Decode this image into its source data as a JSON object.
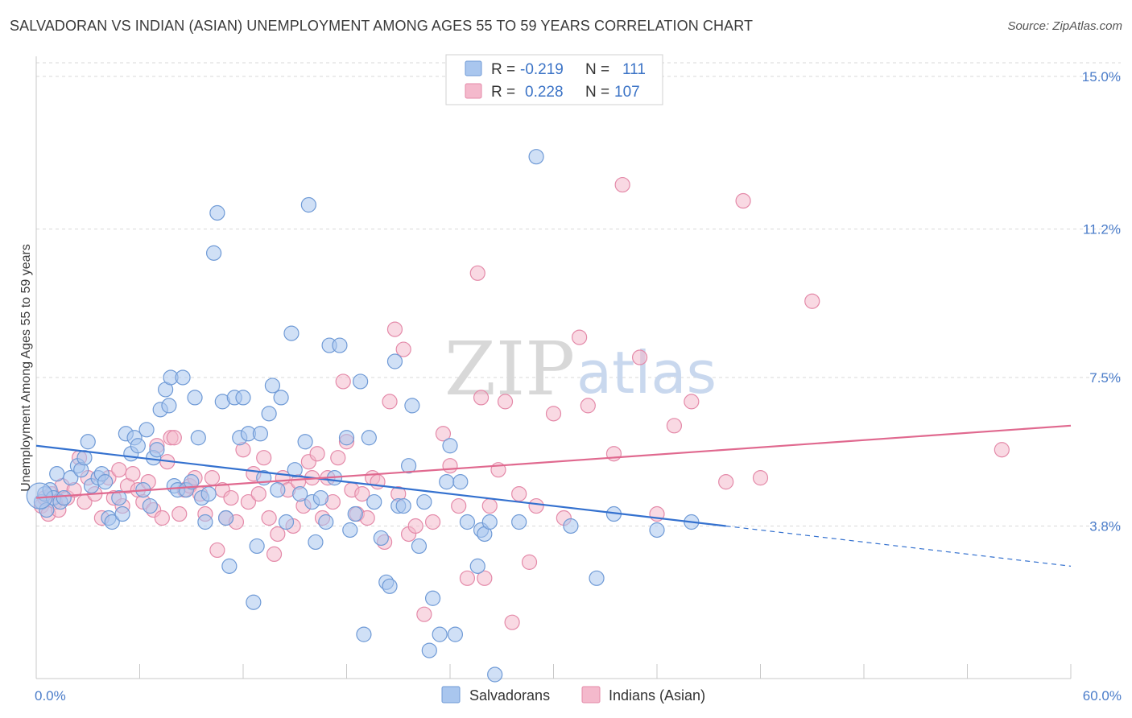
{
  "title": "SALVADORAN VS INDIAN (ASIAN) UNEMPLOYMENT AMONG AGES 55 TO 59 YEARS CORRELATION CHART",
  "source": "Source: ZipAtlas.com",
  "watermark": {
    "zip": "ZIP",
    "atlas": "atlas"
  },
  "legend": {
    "rows": [
      {
        "r_label": "R =",
        "r_value": "-0.219",
        "n_label": "N =",
        "n_value": "111"
      },
      {
        "r_label": "R =",
        "r_value": "0.228",
        "n_label": "N =",
        "n_value": "107"
      }
    ]
  },
  "bottom_legend": [
    "Salvadorans",
    "Indians (Asian)"
  ],
  "colors": {
    "blue_fill": "#a9c6ee",
    "blue_stroke": "#6f9ad6",
    "blue_line": "#3471cf",
    "pink_fill": "#f4b9cc",
    "pink_stroke": "#e48aa9",
    "pink_line": "#e0698f",
    "grid": "#d9d9d9",
    "tick_text": "#4a7cc9"
  },
  "chart_data": {
    "type": "scatter",
    "title": "SALVADORAN VS INDIAN (ASIAN) UNEMPLOYMENT AMONG AGES 55 TO 59 YEARS CORRELATION CHART",
    "xlabel": "",
    "ylabel": "Unemployment Among Ages 55 to 59 years",
    "xlim": [
      0,
      60
    ],
    "ylim": [
      0,
      15.5
    ],
    "x_tick_labels": [
      "0.0%",
      "60.0%"
    ],
    "y_ticks": [
      3.8,
      7.5,
      11.2,
      15.0
    ],
    "y_tick_labels": [
      "3.8%",
      "7.5%",
      "11.2%",
      "15.0%"
    ],
    "grid": "horizontal dashed",
    "legend_position": "top-center",
    "series": [
      {
        "name": "Salvadorans",
        "r": -0.219,
        "n": 111,
        "trend": {
          "x0": 0,
          "y0": 5.8,
          "x1": 40,
          "y1": 3.8,
          "dashed_to_x": 62,
          "dashed_to_y": 2.7
        },
        "points": [
          [
            0.3,
            4.4
          ],
          [
            0.5,
            4.6
          ],
          [
            0.6,
            4.2
          ],
          [
            0.8,
            4.7
          ],
          [
            1.0,
            4.5
          ],
          [
            1.2,
            5.1
          ],
          [
            1.4,
            4.4
          ],
          [
            1.6,
            4.5
          ],
          [
            2.0,
            5.0
          ],
          [
            2.4,
            5.3
          ],
          [
            2.6,
            5.2
          ],
          [
            2.8,
            5.5
          ],
          [
            3.0,
            5.9
          ],
          [
            3.2,
            4.8
          ],
          [
            3.6,
            5.0
          ],
          [
            3.8,
            5.1
          ],
          [
            4.0,
            4.9
          ],
          [
            4.2,
            4.0
          ],
          [
            4.4,
            3.9
          ],
          [
            4.8,
            4.5
          ],
          [
            5.0,
            4.1
          ],
          [
            5.2,
            6.1
          ],
          [
            5.5,
            5.6
          ],
          [
            5.7,
            6.0
          ],
          [
            5.9,
            5.8
          ],
          [
            6.2,
            4.7
          ],
          [
            6.4,
            6.2
          ],
          [
            6.6,
            4.3
          ],
          [
            6.8,
            5.5
          ],
          [
            7.0,
            5.7
          ],
          [
            7.2,
            6.7
          ],
          [
            7.5,
            7.2
          ],
          [
            7.7,
            6.8
          ],
          [
            7.8,
            7.5
          ],
          [
            8.0,
            4.8
          ],
          [
            8.2,
            4.7
          ],
          [
            8.5,
            7.5
          ],
          [
            8.7,
            4.7
          ],
          [
            9.0,
            4.9
          ],
          [
            9.2,
            7.0
          ],
          [
            9.4,
            6.0
          ],
          [
            9.6,
            4.5
          ],
          [
            9.8,
            3.9
          ],
          [
            10.0,
            4.6
          ],
          [
            10.3,
            10.6
          ],
          [
            10.5,
            11.6
          ],
          [
            10.8,
            6.9
          ],
          [
            11.0,
            4.0
          ],
          [
            11.2,
            2.8
          ],
          [
            11.5,
            7.0
          ],
          [
            11.8,
            6.0
          ],
          [
            12.0,
            7.0
          ],
          [
            12.3,
            6.1
          ],
          [
            12.6,
            1.9
          ],
          [
            12.8,
            3.3
          ],
          [
            13.0,
            6.1
          ],
          [
            13.2,
            5.0
          ],
          [
            13.5,
            6.6
          ],
          [
            13.7,
            7.3
          ],
          [
            14.0,
            4.7
          ],
          [
            14.2,
            7.0
          ],
          [
            14.5,
            3.9
          ],
          [
            14.8,
            8.6
          ],
          [
            15.0,
            5.2
          ],
          [
            15.3,
            4.6
          ],
          [
            15.6,
            5.9
          ],
          [
            15.8,
            11.8
          ],
          [
            16.0,
            4.4
          ],
          [
            16.2,
            3.4
          ],
          [
            16.5,
            4.5
          ],
          [
            16.8,
            3.9
          ],
          [
            17.0,
            8.3
          ],
          [
            17.3,
            5.0
          ],
          [
            17.6,
            8.3
          ],
          [
            18.0,
            6.0
          ],
          [
            18.2,
            3.7
          ],
          [
            18.5,
            4.1
          ],
          [
            18.8,
            7.4
          ],
          [
            19.0,
            1.1
          ],
          [
            19.3,
            6.0
          ],
          [
            19.6,
            4.4
          ],
          [
            20.0,
            3.5
          ],
          [
            20.3,
            2.4
          ],
          [
            20.5,
            2.3
          ],
          [
            20.8,
            7.9
          ],
          [
            21.0,
            4.3
          ],
          [
            21.3,
            4.3
          ],
          [
            21.6,
            5.3
          ],
          [
            21.8,
            6.8
          ],
          [
            22.2,
            3.3
          ],
          [
            22.5,
            4.4
          ],
          [
            22.8,
            0.7
          ],
          [
            23.0,
            2.0
          ],
          [
            23.4,
            1.1
          ],
          [
            23.8,
            4.9
          ],
          [
            24.0,
            5.8
          ],
          [
            24.3,
            1.1
          ],
          [
            24.6,
            4.9
          ],
          [
            25.0,
            3.9
          ],
          [
            25.6,
            2.8
          ],
          [
            25.8,
            3.7
          ],
          [
            26.0,
            3.6
          ],
          [
            26.3,
            3.9
          ],
          [
            26.6,
            0.1
          ],
          [
            28.0,
            3.9
          ],
          [
            29.0,
            13.0
          ],
          [
            31.0,
            3.8
          ],
          [
            32.5,
            2.5
          ],
          [
            33.5,
            4.1
          ],
          [
            36.0,
            3.7
          ],
          [
            38.0,
            3.9
          ]
        ]
      },
      {
        "name": "Indians (Asian)",
        "r": 0.228,
        "n": 107,
        "trend": {
          "x0": 0,
          "y0": 4.5,
          "x1": 60,
          "y1": 6.3
        },
        "points": [
          [
            0.3,
            4.3
          ],
          [
            0.5,
            4.5
          ],
          [
            0.7,
            4.1
          ],
          [
            0.9,
            4.6
          ],
          [
            1.1,
            4.4
          ],
          [
            1.3,
            4.2
          ],
          [
            1.5,
            4.8
          ],
          [
            1.8,
            4.5
          ],
          [
            2.2,
            4.7
          ],
          [
            2.5,
            5.5
          ],
          [
            2.8,
            4.4
          ],
          [
            3.0,
            5.0
          ],
          [
            3.4,
            4.6
          ],
          [
            3.8,
            4.0
          ],
          [
            4.2,
            5.0
          ],
          [
            4.5,
            4.5
          ],
          [
            4.8,
            5.2
          ],
          [
            5.0,
            4.3
          ],
          [
            5.3,
            4.8
          ],
          [
            5.6,
            5.1
          ],
          [
            5.9,
            4.7
          ],
          [
            6.2,
            4.4
          ],
          [
            6.5,
            4.9
          ],
          [
            6.8,
            4.2
          ],
          [
            7.0,
            5.8
          ],
          [
            7.3,
            4.0
          ],
          [
            7.6,
            5.4
          ],
          [
            7.8,
            6.0
          ],
          [
            8.0,
            6.0
          ],
          [
            8.3,
            4.1
          ],
          [
            8.6,
            4.7
          ],
          [
            8.9,
            4.8
          ],
          [
            9.2,
            5.0
          ],
          [
            9.5,
            4.6
          ],
          [
            9.8,
            4.1
          ],
          [
            10.2,
            5.0
          ],
          [
            10.5,
            3.2
          ],
          [
            10.8,
            4.7
          ],
          [
            11.0,
            4.0
          ],
          [
            11.3,
            4.5
          ],
          [
            11.6,
            3.9
          ],
          [
            12.0,
            5.7
          ],
          [
            12.3,
            4.4
          ],
          [
            12.6,
            5.1
          ],
          [
            12.9,
            4.6
          ],
          [
            13.2,
            5.5
          ],
          [
            13.5,
            4.0
          ],
          [
            13.8,
            3.1
          ],
          [
            14.0,
            3.6
          ],
          [
            14.3,
            5.0
          ],
          [
            14.6,
            4.7
          ],
          [
            14.9,
            3.8
          ],
          [
            15.2,
            4.9
          ],
          [
            15.5,
            4.3
          ],
          [
            15.8,
            5.4
          ],
          [
            16.0,
            5.0
          ],
          [
            16.3,
            5.6
          ],
          [
            16.6,
            4.0
          ],
          [
            16.9,
            5.0
          ],
          [
            17.2,
            4.4
          ],
          [
            17.5,
            5.5
          ],
          [
            17.8,
            7.4
          ],
          [
            18.0,
            5.9
          ],
          [
            18.3,
            4.7
          ],
          [
            18.6,
            4.1
          ],
          [
            18.9,
            4.6
          ],
          [
            19.2,
            4.0
          ],
          [
            19.5,
            5.0
          ],
          [
            19.8,
            4.9
          ],
          [
            20.2,
            3.4
          ],
          [
            20.5,
            6.9
          ],
          [
            20.8,
            8.7
          ],
          [
            21.0,
            4.6
          ],
          [
            21.3,
            8.2
          ],
          [
            21.6,
            3.6
          ],
          [
            22.0,
            3.8
          ],
          [
            22.5,
            1.6
          ],
          [
            23.0,
            3.9
          ],
          [
            23.6,
            6.1
          ],
          [
            24.0,
            5.3
          ],
          [
            24.5,
            4.3
          ],
          [
            25.0,
            2.5
          ],
          [
            25.6,
            10.1
          ],
          [
            25.8,
            7.0
          ],
          [
            26.0,
            2.5
          ],
          [
            26.3,
            4.3
          ],
          [
            26.8,
            5.2
          ],
          [
            27.2,
            6.9
          ],
          [
            27.6,
            1.4
          ],
          [
            28.0,
            4.6
          ],
          [
            28.6,
            2.9
          ],
          [
            29.0,
            4.3
          ],
          [
            30.0,
            6.6
          ],
          [
            30.6,
            4.0
          ],
          [
            31.5,
            8.5
          ],
          [
            32.0,
            6.8
          ],
          [
            33.5,
            5.6
          ],
          [
            34.0,
            12.3
          ],
          [
            35.0,
            8.0
          ],
          [
            36.0,
            4.1
          ],
          [
            37.0,
            6.3
          ],
          [
            38.0,
            6.9
          ],
          [
            40.0,
            4.9
          ],
          [
            41.0,
            11.9
          ],
          [
            42.0,
            5.0
          ],
          [
            45.0,
            9.4
          ],
          [
            56.0,
            5.7
          ]
        ]
      }
    ]
  }
}
